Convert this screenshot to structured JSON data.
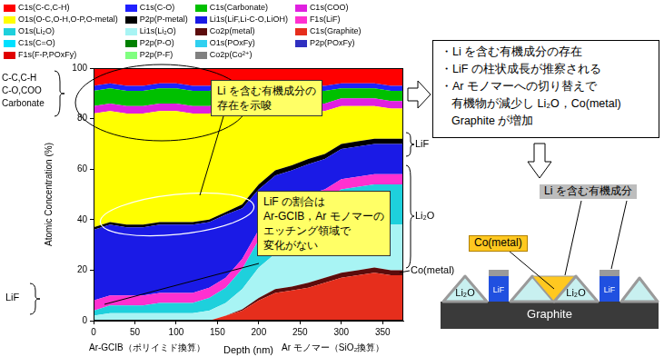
{
  "chart_data": {
    "type": "area",
    "stacked": true,
    "grid": false,
    "legend": "top left",
    "xlabel": "Depth (nm)",
    "ylabel": "Atomic Concentration (%)",
    "x": [
      0,
      20,
      40,
      60,
      80,
      100,
      120,
      140,
      160,
      180,
      200,
      220,
      240,
      260,
      280,
      300,
      320,
      340,
      360,
      375
    ],
    "xlim": [
      0,
      375
    ],
    "xticks": [
      0,
      50,
      100,
      150,
      200,
      250,
      300,
      350
    ],
    "ylim": [
      0,
      100
    ],
    "yticks": [
      0,
      20,
      40,
      60,
      80,
      100
    ],
    "series": [
      {
        "name": "Co2p(Co²⁺)",
        "color": "#808080",
        "values": [
          0,
          0,
          0,
          0,
          0,
          0,
          0,
          0,
          0,
          0,
          0,
          0,
          0,
          0,
          0,
          0,
          0,
          0,
          0,
          0
        ]
      },
      {
        "name": "P2p(P-F)",
        "color": "#80ff80",
        "values": [
          0,
          0,
          0,
          0,
          0,
          0,
          0,
          0,
          0,
          0,
          0,
          0,
          0,
          0,
          0,
          0,
          0,
          0,
          0,
          0
        ]
      },
      {
        "name": "F1s(F-P,POxFy)",
        "color": "#e00000",
        "values": [
          0,
          0,
          0,
          0,
          0,
          0,
          0,
          0,
          0,
          0,
          0,
          0,
          0,
          0,
          0,
          0,
          0,
          0,
          0,
          0
        ]
      },
      {
        "name": "P2p(POxFy)",
        "color": "#3030c0",
        "values": [
          0,
          0,
          0,
          0,
          0,
          0,
          0,
          0,
          0,
          0,
          0,
          0,
          0,
          0,
          0,
          0,
          0,
          0,
          0,
          0
        ]
      },
      {
        "name": "O1s(POxFy)",
        "color": "#30d0f0",
        "values": [
          0,
          0,
          0,
          0,
          0,
          0,
          0,
          0,
          0,
          0,
          0,
          0,
          0,
          0,
          0,
          0,
          0,
          0,
          0,
          0
        ]
      },
      {
        "name": "P2p(P-O)",
        "color": "#008000",
        "values": [
          0,
          0,
          0,
          0,
          0,
          0,
          0,
          0,
          0,
          0,
          0,
          0,
          0,
          0,
          0,
          0,
          0,
          0,
          0,
          0
        ]
      },
      {
        "name": "C1s(C=O)",
        "color": "#00e0ff",
        "values": [
          0,
          0,
          0,
          0,
          0,
          0,
          0,
          0,
          0,
          0,
          0,
          0,
          0,
          0,
          0,
          0,
          0,
          0,
          0,
          0
        ]
      },
      {
        "name": "C1s(Graphite)",
        "color": "#e62e1c",
        "values": [
          0,
          0,
          0,
          0,
          0,
          0,
          0,
          0,
          2,
          4,
          8,
          11,
          12,
          13,
          15,
          17,
          18,
          19,
          18,
          18
        ]
      },
      {
        "name": "Co2p(metal)",
        "color": "#5c0c0c",
        "values": [
          0,
          0,
          0,
          0,
          0,
          0,
          0,
          0,
          0,
          0.5,
          1,
          1.5,
          1.5,
          2,
          2,
          2,
          2,
          2,
          2,
          2
        ]
      },
      {
        "name": "Li1s(Li₂O)",
        "color": "#a8f4f4",
        "values": [
          2,
          3,
          3,
          3,
          3,
          3,
          3,
          4,
          5,
          8,
          12,
          14,
          15,
          16,
          16,
          17,
          17,
          17,
          18,
          18
        ]
      },
      {
        "name": "O1s(Li₂O)",
        "color": "#1ed0dc",
        "values": [
          2,
          3,
          3,
          3,
          4,
          4,
          4,
          5,
          6,
          8,
          11,
          13,
          14,
          15,
          15,
          16,
          16,
          16,
          16,
          16
        ]
      },
      {
        "name": "F1s(LiF)",
        "color": "#ff30d0",
        "values": [
          4,
          4,
          4,
          4,
          4,
          4,
          4,
          4,
          4,
          4,
          4,
          4,
          4,
          4,
          4,
          4,
          4,
          4,
          4,
          4
        ]
      },
      {
        "name": "Li1s(LiF,Li-C-O,LiOH)",
        "color": "#1a1ae6",
        "values": [
          28,
          28,
          27,
          27,
          27,
          27,
          27,
          26,
          25,
          20,
          16,
          14,
          13,
          12,
          12,
          12,
          12,
          12,
          12,
          12
        ]
      },
      {
        "name": "P2p(P-metal)",
        "color": "#000000",
        "values": [
          1,
          1,
          1,
          1,
          1,
          1,
          1,
          1,
          1,
          1.5,
          2,
          2,
          2,
          2,
          2,
          2,
          2,
          2,
          2,
          2
        ]
      },
      {
        "name": "O1s(O-C,O-H,O-P,O-metal)",
        "color": "#ffff00",
        "values": [
          45,
          44,
          44,
          44,
          44,
          44,
          43,
          42,
          40,
          36,
          28,
          24,
          21,
          19,
          17,
          15,
          14,
          13,
          12,
          12
        ]
      },
      {
        "name": "C1s(COO)",
        "color": "#e020e0",
        "values": [
          3,
          3,
          3,
          3,
          3,
          3,
          3,
          3,
          3,
          3,
          3,
          3,
          3,
          3,
          3,
          3,
          3,
          3,
          3,
          3
        ]
      },
      {
        "name": "C1s(Carbonate)",
        "color": "#00c000",
        "values": [
          6,
          6,
          6,
          6,
          6,
          6,
          6,
          6,
          6,
          6,
          5,
          5,
          5,
          5,
          5,
          4,
          4,
          4,
          4,
          4
        ]
      },
      {
        "name": "C1s(C-O)",
        "color": "#2020ff",
        "values": [
          2,
          2,
          2,
          2,
          2,
          2,
          2,
          2,
          2,
          2,
          2,
          2,
          2,
          2,
          2,
          2,
          2,
          2,
          2,
          2
        ]
      },
      {
        "name": "C1s(C-C,C-H)",
        "color": "#ff0000",
        "values": [
          7,
          6,
          7,
          7,
          6,
          6,
          7,
          7,
          6,
          7,
          8,
          6.5,
          7.5,
          7,
          7,
          6,
          6,
          6,
          7,
          7
        ]
      }
    ]
  },
  "annotations": {
    "left_labels": {
      "top": [
        "C-C,C-H",
        "C-O,COO",
        "Carbonate"
      ],
      "bottom": "LiF"
    },
    "right_labels": [
      "LiF",
      "Li₂O",
      "Co(metal)"
    ],
    "region_labels": [
      "Ar-GCIB（ポリイミド換算）",
      "Ar モノマー（SiO₂換算）"
    ],
    "callouts": [
      [
        "Li を含む有機成分の",
        "存在を示唆"
      ],
      [
        "LiF の割合は",
        "Ar-GCIB，Ar モノマーの",
        "エッチング領域で",
        "変化がない"
      ]
    ]
  },
  "summary": {
    "bullets": [
      [
        "・Li を含む有機成分の存在"
      ],
      [
        "・LiF の柱状成長が推察される"
      ],
      [
        "・Ar モノマーへの切り替えで",
        "有機物が減少し Li₂O，Co(metal)",
        "Graphite が増加"
      ]
    ]
  },
  "diagram": {
    "organic_label": "Li を含む有機成分",
    "co_label": "Co(metal)",
    "layer_labels": [
      "Li₂O",
      "LiF",
      "Li₂O",
      "LiF"
    ],
    "substrate": "Graphite"
  }
}
